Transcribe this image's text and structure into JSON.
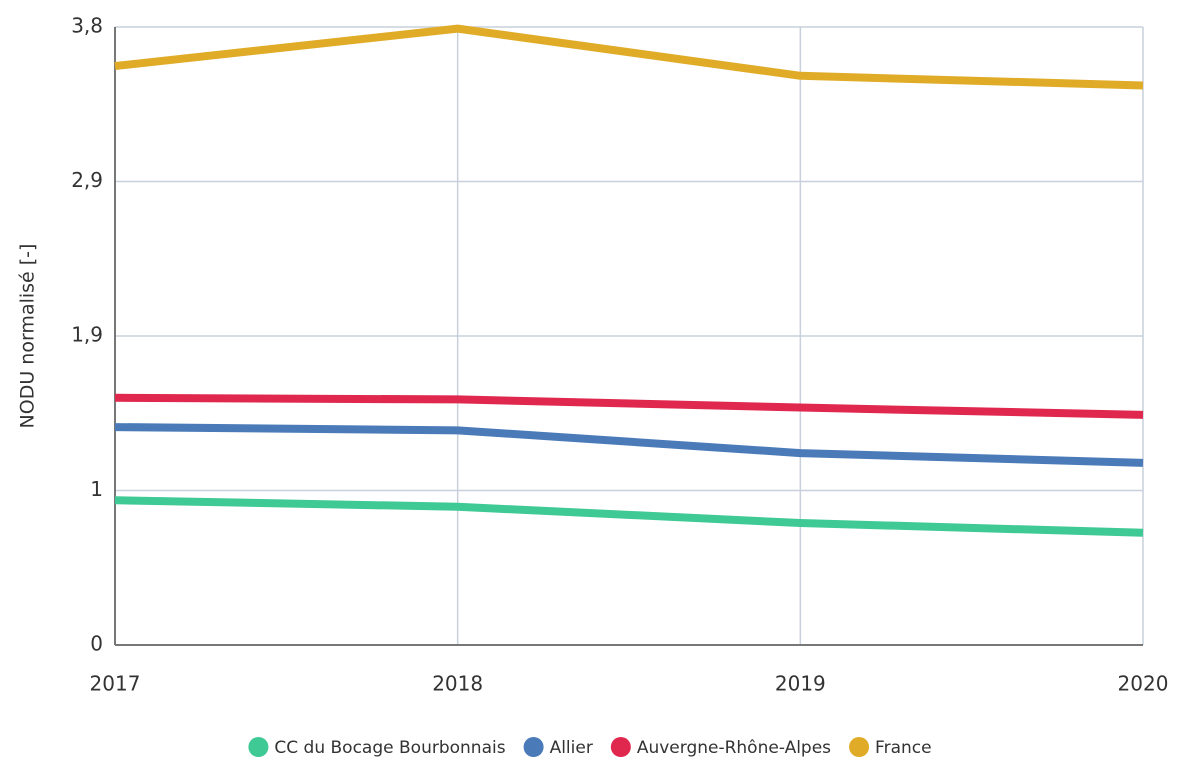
{
  "chart_data": {
    "type": "line",
    "y_label": "NODU normalisé [-]",
    "categories": [
      "2017",
      "2018",
      "2019",
      "2020"
    ],
    "series": [
      {
        "name": "CC du Bocage Bourbonnais",
        "color": "#3ec995",
        "values": [
          0.89,
          0.85,
          0.75,
          0.69
        ]
      },
      {
        "name": "Allier",
        "color": "#4a7ab8",
        "values": [
          1.34,
          1.32,
          1.18,
          1.12
        ]
      },
      {
        "name": "Auvergne-Rhône-Alpes",
        "color": "#e0284f",
        "values": [
          1.52,
          1.51,
          1.46,
          1.415
        ]
      },
      {
        "name": "France",
        "color": "#e0ac28",
        "values": [
          3.56,
          3.79,
          3.5,
          3.44
        ]
      }
    ],
    "ylim": [
      0,
      3.8
    ],
    "yticks": [
      0,
      {
        "value": 0.95,
        "label": "1"
      },
      {
        "value": 1.9,
        "label": "1,9"
      },
      {
        "value": 2.85,
        "label": "2,9"
      },
      {
        "value": 3.8,
        "label": "3,8"
      }
    ],
    "grid": true
  }
}
